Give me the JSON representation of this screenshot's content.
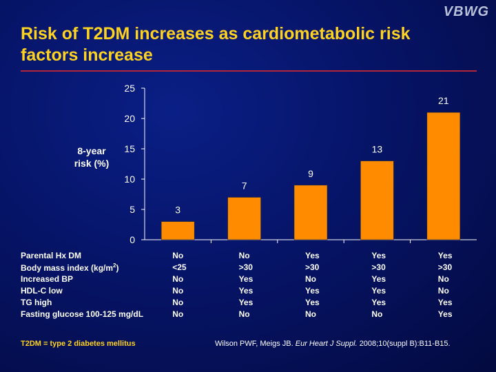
{
  "logo": "VBWG",
  "title": "Risk of T2DM increases as cardiometabolic risk factors increase",
  "ylabel_line1": "8-year",
  "ylabel_line2": "risk (%)",
  "colors": {
    "bar": "#ff8c00",
    "title": "#ffd21f",
    "rule": "#b3263a"
  },
  "chart_data": {
    "type": "bar",
    "ylabel": "8-year risk (%)",
    "ylim": [
      0,
      25
    ],
    "yticks": [
      0,
      5,
      10,
      15,
      20,
      25
    ],
    "values": [
      3,
      7,
      9,
      13,
      21
    ],
    "data_labels": [
      "3",
      "7",
      "9",
      "13",
      "21"
    ],
    "grid": false,
    "legend": "none"
  },
  "factors": {
    "rows": [
      {
        "label": "Parental Hx DM",
        "values": [
          "No",
          "No",
          "Yes",
          "Yes",
          "Yes"
        ]
      },
      {
        "label": "Body mass index (kg/m",
        "sup": "2",
        "label_end": ")",
        "values": [
          "<25",
          ">30",
          ">30",
          ">30",
          ">30"
        ]
      },
      {
        "label": "Increased BP",
        "values": [
          "No",
          "Yes",
          "No",
          "Yes",
          "No"
        ]
      },
      {
        "label": "HDL-C low",
        "values": [
          "No",
          "Yes",
          "Yes",
          "Yes",
          "No"
        ]
      },
      {
        "label": "TG high",
        "values": [
          "No",
          "Yes",
          "Yes",
          "Yes",
          "Yes"
        ]
      },
      {
        "label": "Fasting glucose 100-125 mg/dL",
        "values": [
          "No",
          "No",
          "No",
          "No",
          "Yes"
        ]
      }
    ]
  },
  "footnote": {
    "left": "T2DM = type 2 diabetes mellitus",
    "ref_authors": "Wilson PWF, Meigs JB.",
    "ref_journal": "Eur Heart J Suppl.",
    "ref_rest": "2008;10(suppl B):B11-B15."
  }
}
